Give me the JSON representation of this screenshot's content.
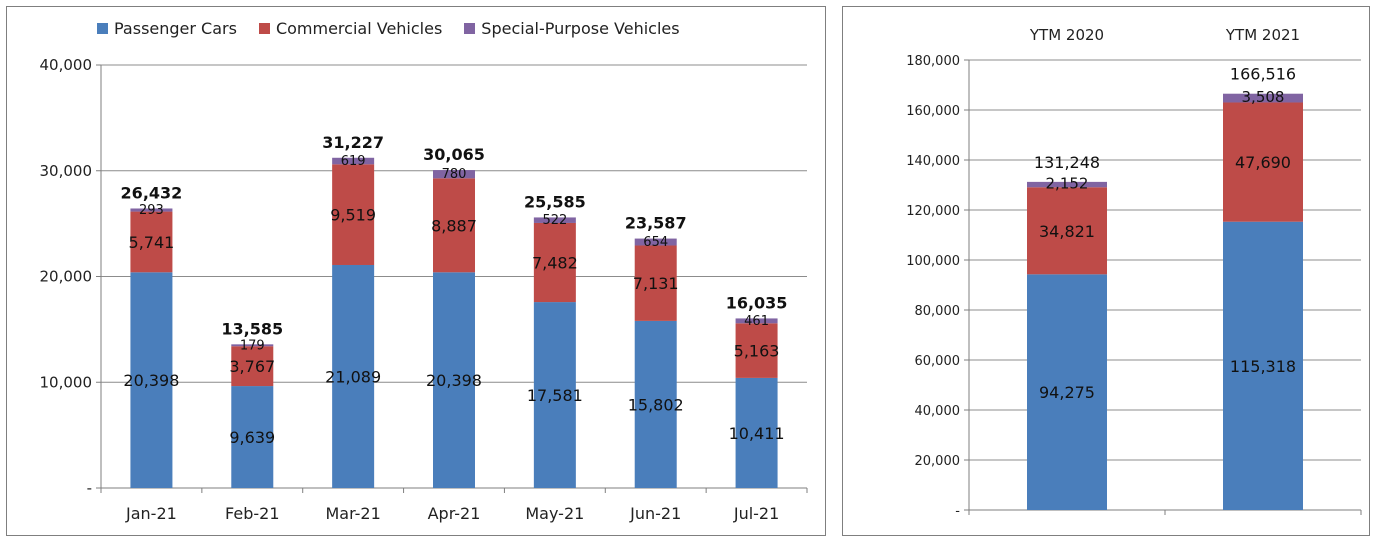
{
  "legend": {
    "passenger": "Passenger Cars",
    "commercial": "Commercial Vehicles",
    "special": "Special-Purpose Vehicles"
  },
  "colors": {
    "passenger": "#4a7ebb",
    "commercial": "#be4b48",
    "special": "#8064a2",
    "axis": "#7f7f7f",
    "grid": "#8c8c8c"
  },
  "chart_data": [
    {
      "type": "bar",
      "stacked": true,
      "categories": [
        "Jan-21",
        "Feb-21",
        "Mar-21",
        "Apr-21",
        "May-21",
        "Jun-21",
        "Jul-21"
      ],
      "series": [
        {
          "name": "Passenger Cars",
          "values": [
            20398,
            9639,
            21089,
            20398,
            17581,
            15802,
            10411
          ],
          "labels": [
            "20,398",
            "9,639",
            "21,089",
            "20,398",
            "17,581",
            "15,802",
            "10,411"
          ]
        },
        {
          "name": "Commercial Vehicles",
          "values": [
            5741,
            3767,
            9519,
            8887,
            7482,
            7131,
            5163
          ],
          "labels": [
            "5,741",
            "3,767",
            "9,519",
            "8,887",
            "7,482",
            "7,131",
            "5,163"
          ]
        },
        {
          "name": "Special-Purpose Vehicles",
          "values": [
            293,
            179,
            619,
            780,
            522,
            654,
            461
          ],
          "labels": [
            "293",
            "179",
            "619",
            "780",
            "522",
            "654",
            "461"
          ]
        }
      ],
      "totals": [
        26432,
        13585,
        31227,
        30065,
        25585,
        23587,
        16035
      ],
      "total_labels": [
        "26,432",
        "13,585",
        "31,227",
        "30,065",
        "25,585",
        "23,587",
        "16,035"
      ],
      "ylim": [
        0,
        40000
      ],
      "yticks": [
        0,
        10000,
        20000,
        30000,
        40000
      ],
      "ytick_labels": [
        "-",
        "10,000",
        "20,000",
        "30,000",
        "40,000"
      ],
      "grid": true,
      "legend_position": "top"
    },
    {
      "type": "bar",
      "stacked": true,
      "categories": [
        "YTM 2020",
        "YTM 2021"
      ],
      "series": [
        {
          "name": "Passenger Cars",
          "values": [
            94275,
            115318
          ],
          "labels": [
            "94,275",
            "115,318"
          ]
        },
        {
          "name": "Commercial Vehicles",
          "values": [
            34821,
            47690
          ],
          "labels": [
            "34,821",
            "47,690"
          ]
        },
        {
          "name": "Special-Purpose Vehicles",
          "values": [
            2152,
            3508
          ],
          "labels": [
            "2,152",
            "3,508"
          ]
        }
      ],
      "totals": [
        131248,
        166516
      ],
      "total_labels": [
        "131,248",
        "166,516"
      ],
      "ylim": [
        0,
        180000
      ],
      "yticks": [
        0,
        20000,
        40000,
        60000,
        80000,
        100000,
        120000,
        140000,
        160000,
        180000
      ],
      "ytick_labels": [
        "-",
        "20,000",
        "40,000",
        "60,000",
        "80,000",
        "100,000",
        "120,000",
        "140,000",
        "160,000",
        "180,000"
      ],
      "grid": true,
      "category_axis_position": "top"
    }
  ]
}
